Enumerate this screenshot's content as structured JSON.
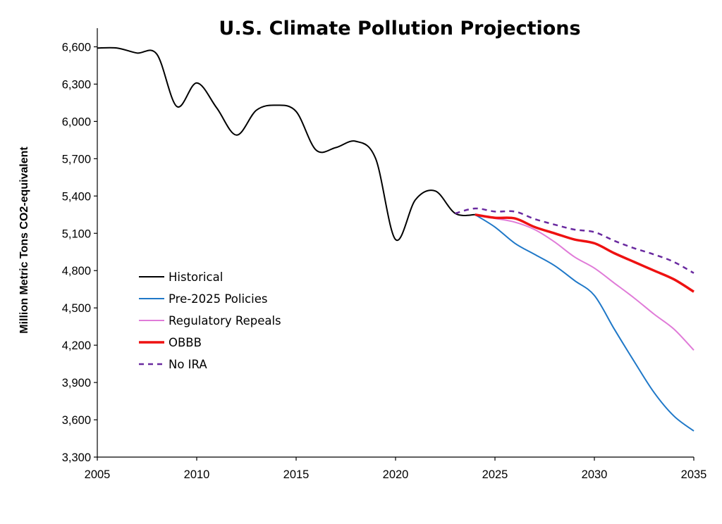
{
  "chart_data": {
    "type": "line",
    "title": "U.S. Climate Pollution Projections",
    "xlabel": "",
    "ylabel": "Million Metric Tons CO2-equivalent",
    "xlim": [
      2005,
      2035
    ],
    "ylim": [
      3300,
      6750
    ],
    "x_ticks": [
      2005,
      2010,
      2015,
      2020,
      2025,
      2030,
      2035
    ],
    "x_tick_labels": [
      "2005",
      "2010",
      "2015",
      "2020",
      "2025",
      "2030",
      "2035"
    ],
    "y_ticks": [
      3300,
      3600,
      3900,
      4200,
      4500,
      4800,
      5100,
      5400,
      5700,
      6000,
      6300,
      6600
    ],
    "y_tick_labels": [
      "3,300",
      "3,600",
      "3,900",
      "4,200",
      "4,500",
      "4,800",
      "5,100",
      "5,400",
      "5,700",
      "6,000",
      "6,300",
      "6,600"
    ],
    "grid": false,
    "legend_position": "center-left",
    "series": [
      {
        "name": "Historical",
        "color": "#000000",
        "style": "solid",
        "points": [
          [
            2005,
            6590
          ],
          [
            2006,
            6590
          ],
          [
            2007,
            6550
          ],
          [
            2008,
            6540
          ],
          [
            2009,
            6120
          ],
          [
            2010,
            6310
          ],
          [
            2011,
            6110
          ],
          [
            2012,
            5890
          ],
          [
            2013,
            6090
          ],
          [
            2014,
            6130
          ],
          [
            2015,
            6080
          ],
          [
            2016,
            5770
          ],
          [
            2017,
            5790
          ],
          [
            2018,
            5840
          ],
          [
            2019,
            5700
          ],
          [
            2020,
            5050
          ],
          [
            2021,
            5370
          ],
          [
            2022,
            5440
          ],
          [
            2023,
            5260
          ],
          [
            2024,
            5250
          ]
        ]
      },
      {
        "name": "Pre-2025 Policies",
        "color": "#1f78c8",
        "style": "solid",
        "points": [
          [
            2024,
            5250
          ],
          [
            2025,
            5150
          ],
          [
            2026,
            5020
          ],
          [
            2027,
            4930
          ],
          [
            2028,
            4840
          ],
          [
            2029,
            4720
          ],
          [
            2030,
            4600
          ],
          [
            2031,
            4330
          ],
          [
            2032,
            4070
          ],
          [
            2033,
            3820
          ],
          [
            2034,
            3630
          ],
          [
            2035,
            3510
          ]
        ]
      },
      {
        "name": "Regulatory Repeals",
        "color": "#e07bd8",
        "style": "solid",
        "points": [
          [
            2024,
            5250
          ],
          [
            2025,
            5220
          ],
          [
            2026,
            5190
          ],
          [
            2027,
            5130
          ],
          [
            2028,
            5030
          ],
          [
            2029,
            4910
          ],
          [
            2030,
            4820
          ],
          [
            2031,
            4700
          ],
          [
            2032,
            4580
          ],
          [
            2033,
            4450
          ],
          [
            2034,
            4330
          ],
          [
            2035,
            4160
          ]
        ]
      },
      {
        "name": "OBBB",
        "color": "#ee1111",
        "style": "solid",
        "points": [
          [
            2024,
            5250
          ],
          [
            2025,
            5225
          ],
          [
            2026,
            5220
          ],
          [
            2027,
            5150
          ],
          [
            2028,
            5100
          ],
          [
            2029,
            5050
          ],
          [
            2030,
            5020
          ],
          [
            2031,
            4940
          ],
          [
            2032,
            4870
          ],
          [
            2033,
            4800
          ],
          [
            2034,
            4730
          ],
          [
            2035,
            4630
          ]
        ]
      },
      {
        "name": "No IRA",
        "color": "#6a2aa0",
        "style": "dashed",
        "points": [
          [
            2023,
            5260
          ],
          [
            2024,
            5300
          ],
          [
            2025,
            5275
          ],
          [
            2026,
            5275
          ],
          [
            2027,
            5215
          ],
          [
            2028,
            5170
          ],
          [
            2029,
            5130
          ],
          [
            2030,
            5110
          ],
          [
            2031,
            5040
          ],
          [
            2032,
            4980
          ],
          [
            2033,
            4930
          ],
          [
            2034,
            4870
          ],
          [
            2035,
            4780
          ]
        ]
      }
    ]
  }
}
